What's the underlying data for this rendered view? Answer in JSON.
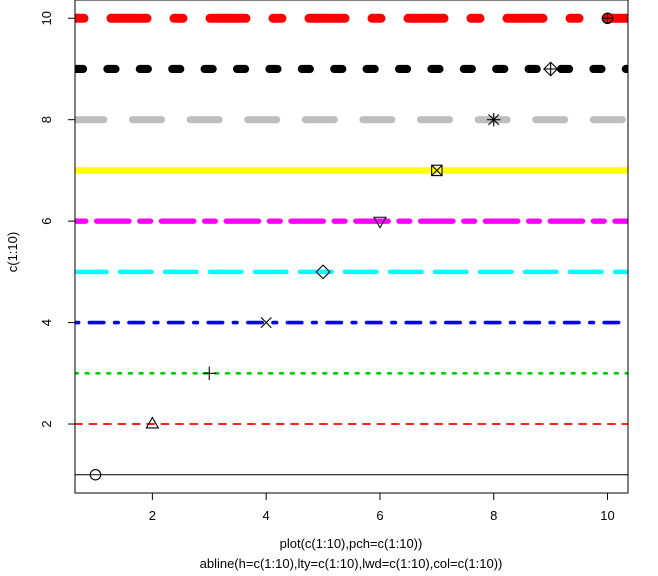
{
  "chart_data": {
    "type": "scatter",
    "title": "",
    "xlabel": "plot(c(1:10),pch=c(1:10))",
    "xlabel_line2": "abline(h=c(1:10),lty=c(1:10),lwd=c(1:10),col=c(1:10))",
    "ylabel": "c(1:10)",
    "xlim": [
      0.64,
      10.36
    ],
    "ylim": [
      0.64,
      10.36
    ],
    "x_ticks": [
      2,
      4,
      6,
      8,
      10
    ],
    "y_ticks": [
      2,
      4,
      6,
      8,
      10
    ],
    "grid": false,
    "legend": "none",
    "points": {
      "x": [
        1,
        2,
        3,
        4,
        5,
        6,
        7,
        8,
        9,
        10
      ],
      "y": [
        1,
        2,
        3,
        4,
        5,
        6,
        7,
        8,
        9,
        10
      ],
      "pch": [
        1,
        2,
        3,
        4,
        5,
        6,
        7,
        8,
        9,
        10
      ],
      "markers": [
        "circle",
        "triangle",
        "plus",
        "cross",
        "diamond",
        "triangle-down",
        "square-cross",
        "asterisk",
        "diamond-plus",
        "circle-plus"
      ]
    },
    "hlines": [
      {
        "y": 1,
        "lty": 1,
        "lwd": 1,
        "color": "#000000",
        "style": "solid"
      },
      {
        "y": 2,
        "lty": 2,
        "lwd": 2,
        "color": "#FF0000",
        "style": "dashed"
      },
      {
        "y": 3,
        "lty": 3,
        "lwd": 3,
        "color": "#00CD00",
        "style": "dotted"
      },
      {
        "y": 4,
        "lty": 4,
        "lwd": 4,
        "color": "#0000FF",
        "style": "dotdash"
      },
      {
        "y": 5,
        "lty": 5,
        "lwd": 5,
        "color": "#00FFFF",
        "style": "longdash"
      },
      {
        "y": 6,
        "lty": 6,
        "lwd": 6,
        "color": "#FF00FF",
        "style": "twodash"
      },
      {
        "y": 7,
        "lty": 7,
        "lwd": 7,
        "color": "#FFFF00",
        "style": "solid"
      },
      {
        "y": 8,
        "lty": 8,
        "lwd": 8,
        "color": "#BEBEBE",
        "style": "dashed"
      },
      {
        "y": 9,
        "lty": 9,
        "lwd": 9,
        "color": "#000000",
        "style": "dotted"
      },
      {
        "y": 10,
        "lty": 10,
        "lwd": 10,
        "color": "#FF0000",
        "style": "dotdash"
      }
    ]
  }
}
